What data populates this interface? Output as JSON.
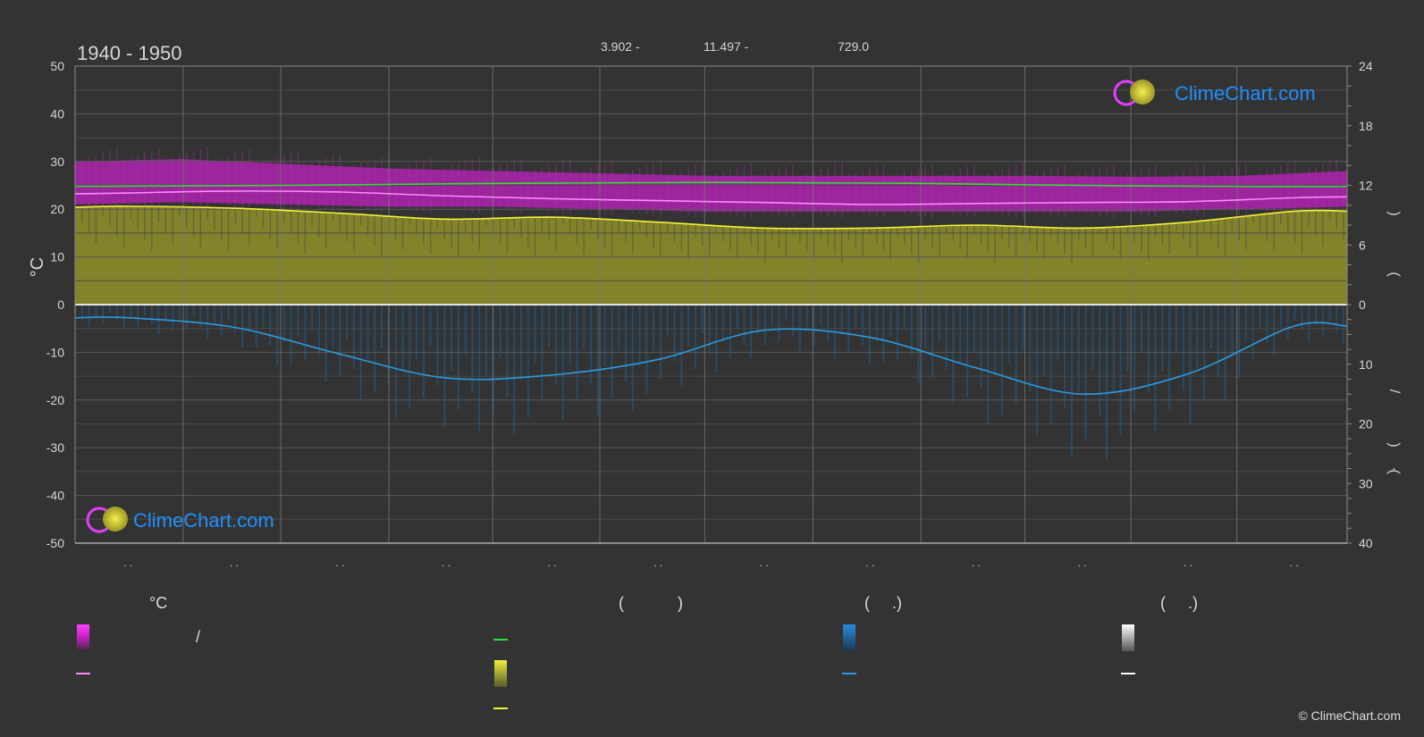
{
  "header": {
    "period": "1940 - 1950",
    "coords": [
      {
        "value": "3.902 -"
      },
      {
        "value": "11.497 -"
      },
      {
        "value": "729.0"
      }
    ]
  },
  "brand": {
    "logo_text": "ClimeChart.com",
    "copyright": "© ClimeChart.com",
    "colors": {
      "text": "#1e90ff",
      "ring": "#e040fb",
      "sun": "#d8d23a"
    }
  },
  "colors": {
    "background": "#333333",
    "temp_band": "#c020c0",
    "temp_mean": "#ff88ff",
    "daylight": "#33dd33",
    "sunshine_band": "#8c8c2a",
    "sunshine_line": "#f4f435",
    "precip_band": "#1c5f95",
    "precip_line": "#2b9be0",
    "grid": "#5a5a5a",
    "vgrid": "#777777"
  },
  "chart_data": {
    "type": "area",
    "title": "1940 - 1950",
    "months": 12,
    "month_labels": [
      ". .",
      ". .",
      ". .",
      ". .",
      ". .",
      ". .",
      ". .",
      ". .",
      ". .",
      ". .",
      ". .",
      ". ."
    ],
    "left_axis": {
      "label": "°C",
      "ylim": [
        -50,
        50
      ],
      "ticks": [
        50,
        40,
        30,
        20,
        10,
        0,
        -10,
        -20,
        -30,
        -40,
        -50
      ]
    },
    "right_axis_top": {
      "ylim": [
        0,
        24
      ],
      "ticks": [
        24,
        18,
        12,
        6,
        0
      ],
      "label_chars": [
        ")",
        "("
      ]
    },
    "right_axis_bottom": {
      "ylim": [
        0,
        40
      ],
      "ticks": [
        10,
        20,
        30,
        40
      ],
      "label_chars": [
        "/",
        ")",
        "·",
        "("
      ]
    },
    "series": [
      {
        "key": "temp_max",
        "x": [
          0,
          1,
          2,
          3,
          4,
          5,
          6,
          7,
          8,
          9,
          10,
          11,
          12
        ],
        "values": [
          30,
          30.5,
          29.5,
          28.5,
          28,
          27.5,
          27,
          27,
          27,
          27,
          26.8,
          27,
          28
        ]
      },
      {
        "key": "temp_min",
        "x": [
          0,
          1,
          2,
          3,
          4,
          5,
          6,
          7,
          8,
          9,
          10,
          11,
          12
        ],
        "values": [
          21,
          21.5,
          21,
          20.5,
          20.5,
          20,
          19.5,
          19.5,
          19.5,
          19.5,
          19.5,
          20,
          20.5
        ]
      },
      {
        "key": "temp_mean",
        "x": [
          0,
          0.5,
          1.5,
          2.5,
          3.5,
          4.5,
          5.5,
          6.5,
          7.5,
          8.5,
          9.5,
          10.5,
          11.5,
          12
        ],
        "values": [
          23.2,
          23.4,
          23.8,
          23.6,
          22.8,
          22.2,
          21.8,
          21.4,
          21.0,
          21.2,
          21.4,
          21.6,
          22.4,
          22.6
        ]
      },
      {
        "key": "daylight_hours",
        "x": [
          0,
          1,
          2,
          3,
          4,
          5,
          6,
          7,
          8,
          9,
          10,
          11,
          12
        ],
        "values": [
          11.9,
          11.95,
          12.0,
          12.1,
          12.2,
          12.25,
          12.3,
          12.25,
          12.2,
          12.05,
          11.95,
          11.9,
          11.9
        ]
      },
      {
        "key": "sunshine_hours",
        "x": [
          0,
          0.5,
          1.5,
          2.5,
          3.5,
          4.5,
          5.5,
          6.5,
          7.5,
          8.5,
          9.5,
          10.5,
          11.5,
          12
        ],
        "values": [
          9.8,
          9.9,
          9.7,
          9.2,
          8.6,
          8.8,
          8.3,
          7.7,
          7.7,
          8.0,
          7.7,
          8.3,
          9.4,
          9.4
        ]
      },
      {
        "key": "precipitation",
        "x": [
          0,
          0.5,
          1.5,
          2.5,
          3.5,
          4.5,
          5.5,
          6.5,
          7.5,
          8.5,
          9.5,
          10.5,
          11.5,
          12
        ],
        "values": [
          2.2,
          2.2,
          3.8,
          8.3,
          12.3,
          11.8,
          9.2,
          4.3,
          5.5,
          10.6,
          15.0,
          11.6,
          3.6,
          3.6
        ]
      }
    ]
  },
  "legend": {
    "col1_heading": "°C",
    "col1_sep": "/",
    "col2_heading": "(            )",
    "col3_heading": "(     .)",
    "col4_heading": "(     .)"
  }
}
